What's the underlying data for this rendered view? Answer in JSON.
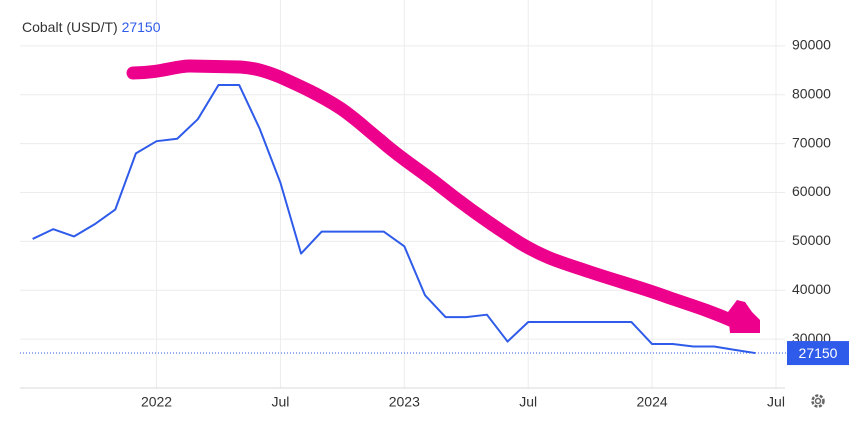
{
  "chart_data": {
    "type": "line",
    "title": "Cobalt (USD/T)",
    "x": [
      "2021-07",
      "2021-08",
      "2021-09",
      "2021-10",
      "2021-11",
      "2021-12",
      "2022-01",
      "2022-02",
      "2022-03",
      "2022-04",
      "2022-05",
      "2022-06",
      "2022-07",
      "2022-08",
      "2022-09",
      "2022-10",
      "2022-11",
      "2022-12",
      "2023-01",
      "2023-02",
      "2023-03",
      "2023-04",
      "2023-05",
      "2023-06",
      "2023-07",
      "2023-08",
      "2023-09",
      "2023-10",
      "2023-11",
      "2023-12",
      "2024-01",
      "2024-02",
      "2024-03",
      "2024-04",
      "2024-05",
      "2024-06"
    ],
    "series": [
      {
        "name": "Cobalt",
        "color": "#2f5bea",
        "values": [
          50500,
          52500,
          51000,
          53500,
          56500,
          68000,
          70500,
          71000,
          75000,
          82000,
          82000,
          73000,
          62000,
          47500,
          52000,
          52000,
          52000,
          52000,
          49000,
          39000,
          34500,
          34500,
          35000,
          29500,
          33500,
          33500,
          33500,
          33500,
          33500,
          33500,
          29000,
          29000,
          28500,
          28500,
          27800,
          27150
        ]
      }
    ],
    "xlim": [
      "2021-06",
      "2024-07"
    ],
    "xticks": [
      {
        "value": "2022-01",
        "label": "2022"
      },
      {
        "value": "2022-07",
        "label": "Jul"
      },
      {
        "value": "2023-01",
        "label": "2023"
      },
      {
        "value": "2023-07",
        "label": "Jul"
      },
      {
        "value": "2024-01",
        "label": "2024"
      },
      {
        "value": "2024-07",
        "label": "Jul"
      }
    ],
    "ylim": [
      20000,
      100000
    ],
    "yticks": [
      30000,
      40000,
      50000,
      60000,
      70000,
      80000,
      90000
    ],
    "grid": true
  }
}
